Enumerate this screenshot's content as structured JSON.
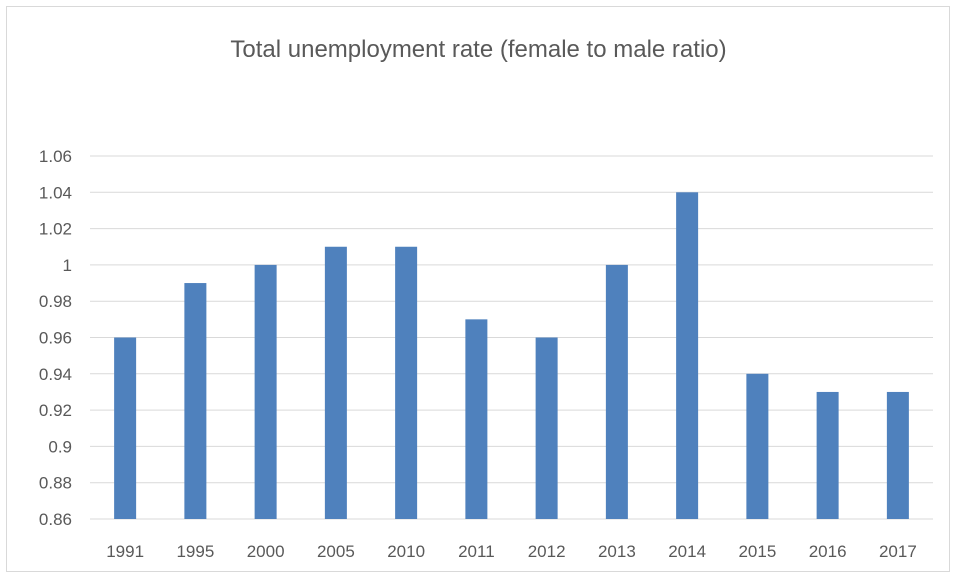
{
  "chart_data": {
    "type": "bar",
    "title": "Total unemployment rate (female to male ratio)",
    "xlabel": "",
    "ylabel": "",
    "categories": [
      "1991",
      "1995",
      "2000",
      "2005",
      "2010",
      "2011",
      "2012",
      "2013",
      "2014",
      "2015",
      "2016",
      "2017"
    ],
    "series": [
      {
        "values": [
          0.96,
          0.99,
          1.0,
          1.01,
          1.01,
          0.97,
          0.96,
          1.0,
          1.04,
          0.94,
          0.93,
          0.93
        ]
      }
    ],
    "ylim": [
      0.86,
      1.06
    ],
    "yticks": [
      "0.86",
      "0.88",
      "0.9",
      "0.92",
      "0.94",
      "0.96",
      "0.98",
      "1",
      "1.02",
      "1.04",
      "1.06"
    ],
    "grid": true,
    "legend": "none",
    "bar_color": "#4f81bd",
    "grid_color": "#d9d9d9",
    "text_color": "#595959"
  }
}
